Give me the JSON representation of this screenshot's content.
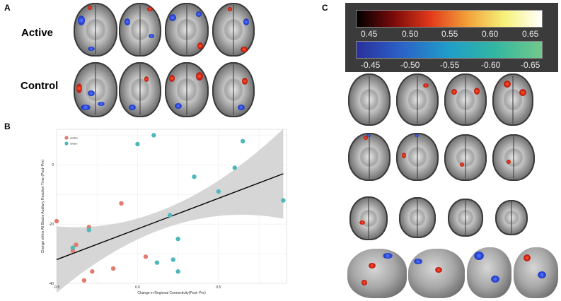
{
  "panels": {
    "a": "A",
    "b": "B",
    "c": "C"
  },
  "panel_a": {
    "rows": [
      "Active",
      "Control"
    ]
  },
  "colorbars": {
    "positive_labels": [
      "0.45",
      "0.50",
      "0.55",
      "0.60",
      "0.65"
    ],
    "negative_labels": [
      "-0.45",
      "-0.50",
      "-0.55",
      "-0.60",
      "-0.65"
    ],
    "positive_colors": [
      "#000000",
      "#7a0a0a",
      "#e23a1a",
      "#f2a23a",
      "#f6f27a",
      "#ffffff"
    ],
    "negative_colors": [
      "#2a2f9b",
      "#2b64c8",
      "#1f9ec9",
      "#33b7a0",
      "#72c98b"
    ]
  },
  "chart_data": {
    "type": "scatter",
    "xlabel": "Change in Regional Connectivity(Post−Pre)",
    "ylabel": "Change within All Blocks Auditory Reaction Time (Post−Pre)",
    "x_ticks": [
      "-0.5",
      "0.0",
      "0.5"
    ],
    "y_ticks": [
      "0",
      "-20",
      "-40"
    ],
    "legend": [
      "Active",
      "Sham"
    ],
    "series": [
      {
        "name": "Active",
        "color": "#e07b6d",
        "x": [
          -0.5,
          -0.4,
          -0.38,
          -0.33,
          -0.28,
          -0.3,
          -0.15,
          -0.1,
          0.05
        ],
        "y": [
          -19,
          -29,
          -27,
          -39,
          -36,
          -21,
          -35,
          -13,
          -31
        ]
      },
      {
        "name": "Sham",
        "color": "#4cb8bc",
        "x": [
          -0.4,
          -0.3,
          0.0,
          0.1,
          0.12,
          0.2,
          0.22,
          0.25,
          0.25,
          0.35,
          0.5,
          0.6,
          0.65,
          0.9
        ],
        "y": [
          -28,
          -22,
          7,
          10,
          -33,
          -17,
          -32,
          -25,
          -36,
          -4,
          -9,
          -1,
          8,
          -12
        ]
      }
    ],
    "regression": {
      "x": [
        -0.5,
        0.9
      ],
      "y": [
        -32,
        -3
      ]
    },
    "xlim": [
      -0.5,
      0.92
    ],
    "ylim": [
      -40,
      12
    ],
    "grid": true,
    "confidence_band": true,
    "legend_position": "top-left"
  }
}
